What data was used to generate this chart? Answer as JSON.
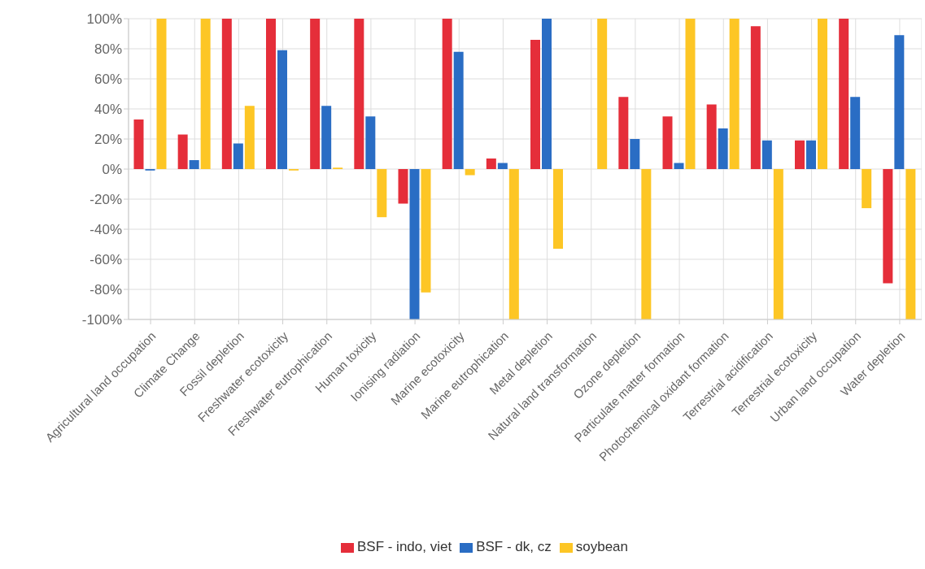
{
  "chart_data": {
    "type": "bar",
    "categories": [
      "Agricultural land occupation",
      "Climate Change",
      "Fossil depletion",
      "Freshwater ecotoxicity",
      "Freshwater eutrophication",
      "Human toxicity",
      "Ionising radiation",
      "Marine ecotoxicity",
      "Marine eutrophication",
      "Metal depletion",
      "Natural land transformation",
      "Ozone depletion",
      "Particulate matter formation",
      "Photochemical oxidant formation",
      "Terrestrial acidification",
      "Terrestrial ecotoxicity",
      "Urban land occupation",
      "Water depletion"
    ],
    "series": [
      {
        "name": "BSF - indo, viet",
        "color": "#e52e3a",
        "values": [
          33,
          23,
          100,
          100,
          100,
          100,
          -23,
          100,
          7,
          86,
          0,
          48,
          35,
          43,
          95,
          19,
          100,
          -76
        ]
      },
      {
        "name": "BSF - dk, cz",
        "color": "#2a6dc4",
        "values": [
          -1,
          6,
          17,
          79,
          42,
          35,
          -100,
          78,
          4,
          100,
          0,
          20,
          4,
          27,
          19,
          19,
          48,
          89
        ]
      },
      {
        "name": "soybean",
        "color": "#fdc625",
        "values": [
          100,
          100,
          42,
          -1,
          1,
          -32,
          -82,
          -4,
          -100,
          -53,
          100,
          -100,
          100,
          100,
          -100,
          100,
          -26,
          -100
        ]
      }
    ],
    "ylim": [
      -100,
      100
    ],
    "yticks": [
      {
        "value": -100,
        "label": "-100%"
      },
      {
        "value": -80,
        "label": "-80%"
      },
      {
        "value": -60,
        "label": "-60%"
      },
      {
        "value": -40,
        "label": "-40%"
      },
      {
        "value": -20,
        "label": "-20%"
      },
      {
        "value": 0,
        "label": "0%"
      },
      {
        "value": 20,
        "label": "20%"
      },
      {
        "value": 40,
        "label": "40%"
      },
      {
        "value": 60,
        "label": "60%"
      },
      {
        "value": 80,
        "label": "80%"
      },
      {
        "value": 100,
        "label": "100%"
      }
    ],
    "grid": true,
    "legend": "bottom"
  }
}
